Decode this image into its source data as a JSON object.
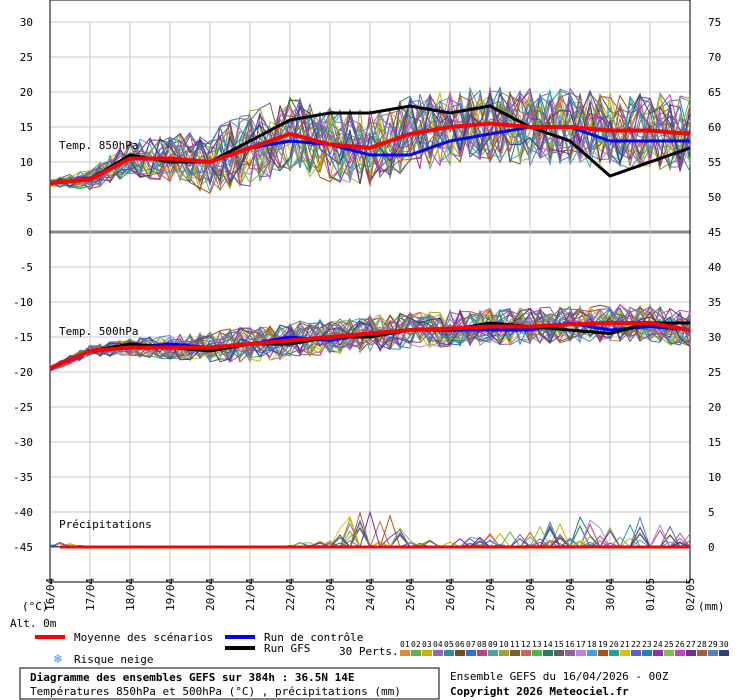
{
  "chart_data": {
    "type": "line",
    "x_labels": [
      "16/04",
      "17/04",
      "18/04",
      "19/04",
      "20/04",
      "21/04",
      "22/04",
      "23/04",
      "24/04",
      "25/04",
      "26/04",
      "27/04",
      "28/04",
      "29/04",
      "30/04",
      "01/05",
      "02/05"
    ],
    "y_left_ticks": [
      "30",
      "25",
      "20",
      "15",
      "10",
      "5",
      "0",
      "-5",
      "-10",
      "-15",
      "-20",
      "-25",
      "-30",
      "-35",
      "-40",
      "-45"
    ],
    "y_right_ticks": [
      "75",
      "70",
      "65",
      "60",
      "55",
      "50",
      "45",
      "40",
      "35",
      "30",
      "25",
      "20",
      "15",
      "10",
      "5",
      "0"
    ],
    "left_unit": "(°C)",
    "right_unit": "(mm)",
    "alt_label": "Alt. 0m",
    "panel_labels": {
      "t850": "Temp. 850hPa",
      "t500": "Temp. 500hPa",
      "precip": "Précipitations"
    },
    "series_summary": {
      "t850_mean": [
        7,
        7.5,
        10.5,
        10.5,
        10,
        12,
        14,
        12.5,
        12,
        14,
        15,
        15.5,
        15,
        15,
        14.5,
        14.5,
        14
      ],
      "t850_control": [
        7,
        7.5,
        11,
        10,
        10,
        12,
        13,
        12.5,
        11,
        11,
        13,
        14,
        15,
        15,
        13,
        13,
        13
      ],
      "t850_gfs": [
        7,
        7.5,
        11,
        10,
        10,
        13,
        16,
        17,
        17,
        18,
        17,
        18,
        15,
        13,
        8,
        10,
        12
      ],
      "t500_mean": [
        -19.5,
        -17,
        -16.5,
        -16.5,
        -16.5,
        -16,
        -15.5,
        -15,
        -14.5,
        -14,
        -13.8,
        -13.5,
        -13.5,
        -13.2,
        -13,
        -13,
        -14
      ],
      "t500_control": [
        -19.5,
        -17,
        -16.5,
        -16,
        -16.5,
        -16,
        -15,
        -15.5,
        -14.5,
        -14,
        -14,
        -14,
        -14,
        -13,
        -14,
        -13.5,
        -14
      ],
      "t500_gfs": [
        -19.5,
        -17,
        -16,
        -16.5,
        -17,
        -16,
        -16,
        -15,
        -15,
        -14,
        -14,
        -13,
        -13.5,
        -14,
        -14.5,
        -13,
        -13
      ],
      "precip_max_mm": [
        1,
        0,
        0,
        0,
        0,
        0,
        0.5,
        1,
        8,
        1,
        1,
        2,
        3,
        5,
        3,
        5,
        2
      ]
    },
    "legend": {
      "mean": "Moyenne des scénarios",
      "control": "Run de contrôle",
      "gfs": "Run GFS",
      "snow": "Risque neige",
      "perts_label": "30 Perts."
    },
    "pert_numbers": [
      "01",
      "02",
      "03",
      "04",
      "05",
      "06",
      "07",
      "08",
      "09",
      "10",
      "11",
      "12",
      "13",
      "14",
      "15",
      "16",
      "17",
      "18",
      "19",
      "20",
      "21",
      "22",
      "23",
      "24",
      "25",
      "26",
      "27",
      "28",
      "29",
      "30"
    ],
    "colors": {
      "mean": "#ff0000",
      "control": "#0000ff",
      "gfs": "#000000",
      "snow": "#3399ff",
      "perts": [
        "#e8882a",
        "#6ab04c",
        "#c8b400",
        "#a060c0",
        "#2f8f8f",
        "#7a4a20",
        "#3070d0",
        "#c04080",
        "#50a0a0",
        "#a0a030",
        "#806020",
        "#d06060",
        "#40c040",
        "#208060",
        "#606060",
        "#9060a0",
        "#c080e0",
        "#40a0e0",
        "#b05010",
        "#20a0a0",
        "#e0c000",
        "#6060c0",
        "#2080c0",
        "#9030b0",
        "#80c040",
        "#c040c0",
        "#703090",
        "#a06040",
        "#5080c0",
        "#304080"
      ]
    }
  },
  "footer": {
    "title": "Diagramme des ensembles GEFS sur 384h : 36.5N 14E",
    "subtitle": "Températures 850hPa et 500hPa (°C) , précipitations (mm)",
    "run": "Ensemble GEFS du 16/04/2026 - 00Z",
    "copyright": "Copyright 2026 Meteociel.fr"
  }
}
